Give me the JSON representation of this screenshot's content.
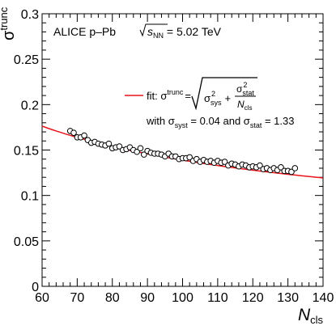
{
  "chart_data": {
    "type": "scatter",
    "x_axis": {
      "label_main": "N",
      "label_sub": "cls",
      "lim": [
        60,
        140
      ],
      "ticks": [
        60,
        70,
        80,
        90,
        100,
        110,
        120,
        130,
        140
      ],
      "tick_labels": [
        "60",
        "70",
        "80",
        "90",
        "100",
        "110",
        "120",
        "130",
        "140"
      ]
    },
    "y_axis": {
      "label_main": "σ",
      "label_sup": "trunc",
      "lim": [
        0,
        0.3
      ],
      "ticks": [
        0,
        0.05,
        0.1,
        0.15,
        0.2,
        0.25,
        0.3
      ],
      "tick_labels": [
        "0",
        "0.05",
        "0.1",
        "0.15",
        "0.2",
        "0.25",
        "0.3"
      ]
    },
    "grid": false,
    "title_parts": {
      "pre": "ALICE p–Pb ",
      "s": "s",
      "nn": "NN",
      "post": " = 5.02 TeV"
    },
    "legend": {
      "placement": "top-right",
      "fit_prefix": "fit: σ",
      "fit_sup": "trunc",
      "fit_eq": "=",
      "sigma": "σ",
      "sys_sup": "2",
      "sys_sub": "sys",
      "plus": "+",
      "stat_sup": "2",
      "stat_sub": "stat",
      "ncls_n": "N",
      "ncls_sub": "cls",
      "line2_with": "with σ",
      "line2_syst_sub": "syst",
      "line2_mid": " = 0.04 and σ",
      "line2_stat_sub": "stat",
      "line2_end": " = 1.33"
    },
    "fit": {
      "sigma_sys": 0.04,
      "sigma_stat": 1.33,
      "x_range": [
        60,
        140
      ],
      "color": "#e8141a"
    },
    "series": [
      {
        "marker": "open-circle",
        "x": [
          68,
          69,
          70,
          71,
          72,
          73,
          74,
          75,
          76,
          77,
          78,
          79,
          80,
          81,
          82,
          83,
          84,
          85,
          86,
          87,
          88,
          89,
          90,
          91,
          92,
          93,
          94,
          95,
          96,
          97,
          98,
          99,
          100,
          101,
          102,
          103,
          104,
          105,
          106,
          107,
          108,
          109,
          110,
          111,
          112,
          113,
          114,
          115,
          116,
          117,
          118,
          119,
          120,
          121,
          122,
          123,
          124,
          125,
          126,
          127,
          128,
          129,
          130,
          131,
          132
        ],
        "y": [
          0.171,
          0.169,
          0.164,
          0.164,
          0.166,
          0.161,
          0.158,
          0.159,
          0.157,
          0.156,
          0.155,
          0.157,
          0.152,
          0.153,
          0.154,
          0.15,
          0.151,
          0.153,
          0.15,
          0.148,
          0.152,
          0.145,
          0.149,
          0.147,
          0.146,
          0.146,
          0.145,
          0.143,
          0.146,
          0.143,
          0.143,
          0.14,
          0.141,
          0.141,
          0.142,
          0.138,
          0.14,
          0.137,
          0.139,
          0.137,
          0.138,
          0.136,
          0.138,
          0.136,
          0.137,
          0.133,
          0.135,
          0.134,
          0.132,
          0.134,
          0.133,
          0.131,
          0.132,
          0.131,
          0.133,
          0.129,
          0.13,
          0.128,
          0.13,
          0.128,
          0.131,
          0.127,
          0.127,
          0.126,
          0.13
        ]
      }
    ]
  }
}
